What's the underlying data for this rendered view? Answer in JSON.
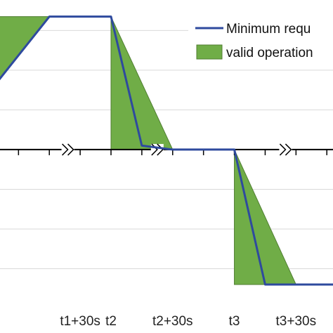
{
  "chart_data": {
    "type": "line",
    "x_tick_labels": [
      "t1+30s",
      "t2",
      "t2+30s",
      "t3",
      "t3+30s"
    ],
    "grid": true,
    "legend_position": "top-right",
    "colors": {
      "line": "#2e4a9e",
      "area": "#70ad47",
      "area_edge": "#507e32",
      "grid": "#d9d9d9",
      "axis": "#000000"
    },
    "series": [
      {
        "name": "Minimum requ",
        "kind": "line",
        "points": [
          [
            -1,
            1.4
          ],
          [
            0,
            3.35
          ],
          [
            1,
            3.35
          ],
          [
            1.5,
            0.1
          ],
          [
            2,
            0
          ],
          [
            3,
            0
          ],
          [
            3.5,
            -3.4
          ],
          [
            5,
            -3.4
          ]
        ]
      },
      {
        "name": "valid operation",
        "kind": "area",
        "polygons": [
          [
            [
              -1,
              1.4
            ],
            [
              -1,
              3.35
            ],
            [
              0,
              3.35
            ]
          ],
          [
            [
              1,
              3.35
            ],
            [
              1,
              0
            ],
            [
              2,
              0
            ]
          ],
          [
            [
              3,
              0
            ],
            [
              3,
              -3.4
            ],
            [
              4,
              -3.4
            ]
          ]
        ]
      }
    ],
    "xlim": [
      -0.8,
      4.6
    ],
    "ylim": [
      -3.7,
      3.45
    ]
  }
}
